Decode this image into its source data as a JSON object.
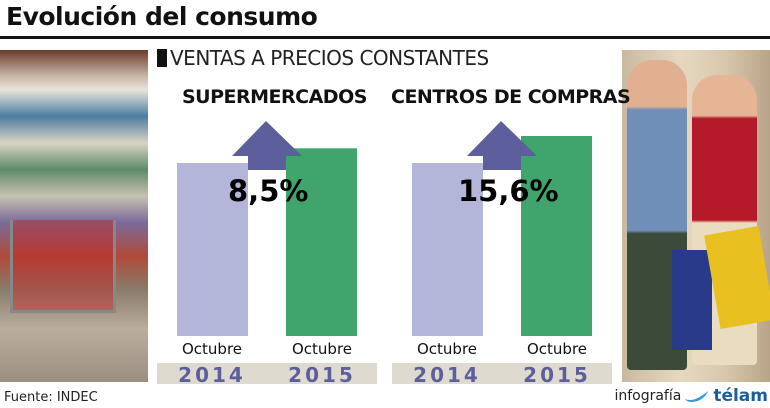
{
  "title": "Evolución del consumo",
  "subtitle": "VENTAS A PRECIOS CONSTANTES",
  "source": "Fuente: INDEC",
  "credit": {
    "prefix": "infografía",
    "brand": "télam"
  },
  "colors": {
    "bar_2014": "#b3b5d9",
    "bar_2015": "#3fa56c",
    "arrow": "#5c5f9c",
    "year_text": "#5c5f9c",
    "band": "#dedad0"
  },
  "chart_data": [
    {
      "type": "bar",
      "title": "SUPERMERCADOS",
      "categories": [
        "Octubre 2014",
        "Octubre 2015"
      ],
      "month_labels": [
        "Octubre",
        "Octubre"
      ],
      "year_labels": [
        "2014",
        "2015"
      ],
      "values": [
        100,
        108.5
      ],
      "annotation": "8,5%",
      "ylim": [
        0,
        108.5
      ],
      "grid": false
    },
    {
      "type": "bar",
      "title": "CENTROS DE COMPRAS",
      "categories": [
        "Octubre 2014",
        "Octubre 2015"
      ],
      "month_labels": [
        "Octubre",
        "Octubre"
      ],
      "year_labels": [
        "2014",
        "2015"
      ],
      "values": [
        100,
        115.6
      ],
      "annotation": "15,6%",
      "ylim": [
        0,
        115.6
      ],
      "grid": false
    }
  ]
}
